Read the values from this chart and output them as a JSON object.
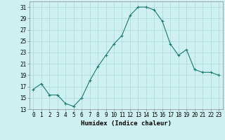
{
  "x": [
    0,
    1,
    2,
    3,
    4,
    5,
    6,
    7,
    8,
    9,
    10,
    11,
    12,
    13,
    14,
    15,
    16,
    17,
    18,
    19,
    20,
    21,
    22,
    23
  ],
  "y": [
    16.5,
    17.5,
    15.5,
    15.5,
    14.0,
    13.5,
    15.0,
    18.0,
    20.5,
    22.5,
    24.5,
    26.0,
    29.5,
    31.0,
    31.0,
    30.5,
    28.5,
    24.5,
    22.5,
    23.5,
    20.0,
    19.5,
    19.5,
    19.0
  ],
  "xlabel": "Humidex (Indice chaleur)",
  "xlim": [
    -0.5,
    23.5
  ],
  "ylim": [
    13,
    32
  ],
  "yticks": [
    13,
    15,
    17,
    19,
    21,
    23,
    25,
    27,
    29,
    31
  ],
  "xtick_labels": [
    "0",
    "1",
    "2",
    "3",
    "4",
    "5",
    "6",
    "7",
    "8",
    "9",
    "10",
    "11",
    "12",
    "13",
    "14",
    "15",
    "16",
    "17",
    "18",
    "19",
    "20",
    "21",
    "22",
    "23"
  ],
  "line_color": "#1a7a6e",
  "marker": "+",
  "bg_color": "#cff0f0",
  "grid_color": "#aad8d8",
  "label_fontsize": 6.5,
  "tick_fontsize": 5.5
}
